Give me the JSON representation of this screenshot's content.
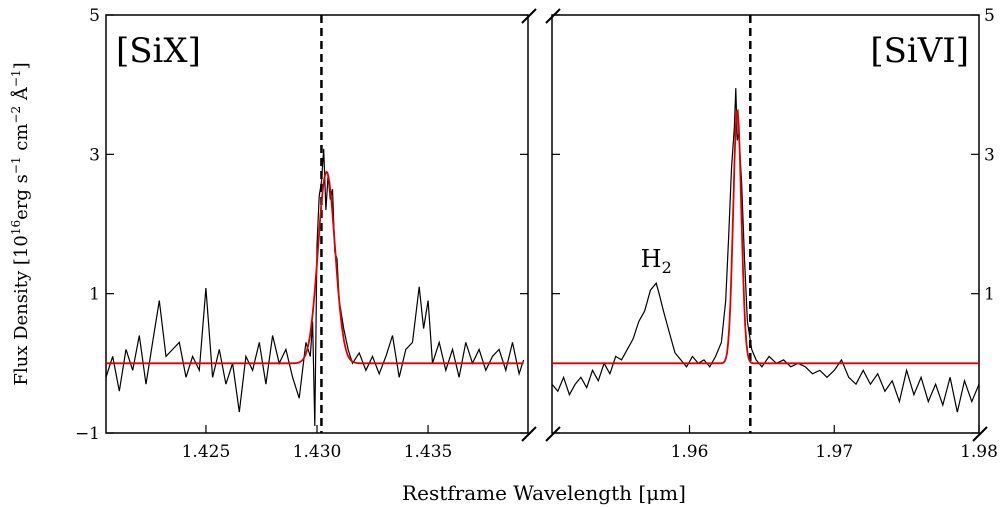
{
  "chart_data": {
    "type": "line",
    "ylabel": "Flux Density [10^16erg s^-1 cm^-2 Å^-1]",
    "ylabel_parts": {
      "base": "Flux Density [10",
      "exp1": "16",
      "mid": "erg s",
      "exp2": "−1",
      "mid2": " cm",
      "exp3": "−2",
      "mid3": " Å",
      "exp4": "−1",
      "end": "]"
    },
    "xlabel": "Restframe Wavelength [μm]",
    "ylim": [
      -1,
      5
    ],
    "yticks": [
      "−1",
      "1",
      "3",
      "5"
    ],
    "ytick_values": [
      -1,
      1,
      3,
      5
    ],
    "grid": false,
    "panels": [
      {
        "label": "[SiX]",
        "xlim": [
          1.4205,
          1.4395
        ],
        "xticks": [
          1.425,
          1.43,
          1.435
        ],
        "xtick_labels": [
          "1.425",
          "1.430",
          "1.435"
        ],
        "dashed_line_x": 1.4302,
        "fit_model": {
          "amplitude": 2.75,
          "center": 1.43043,
          "sigma": 0.00038,
          "baseline": 0.0,
          "x_range": [
            1.4205,
            1.4393
          ]
        },
        "observed": [
          [
            1.4205,
            -0.2
          ],
          [
            1.4208,
            0.1
          ],
          [
            1.4211,
            -0.4
          ],
          [
            1.4214,
            0.2
          ],
          [
            1.4217,
            -0.1
          ],
          [
            1.422,
            0.4
          ],
          [
            1.4223,
            -0.3
          ],
          [
            1.4226,
            0.3
          ],
          [
            1.4229,
            0.9
          ],
          [
            1.4232,
            0.1
          ],
          [
            1.4235,
            0.2
          ],
          [
            1.4238,
            0.3
          ],
          [
            1.4241,
            -0.2
          ],
          [
            1.4244,
            0.1
          ],
          [
            1.4247,
            -0.1
          ],
          [
            1.425,
            1.08
          ],
          [
            1.4253,
            -0.2
          ],
          [
            1.4256,
            0.2
          ],
          [
            1.4259,
            -0.3
          ],
          [
            1.4262,
            0.0
          ],
          [
            1.4265,
            -0.7
          ],
          [
            1.4268,
            0.1
          ],
          [
            1.4271,
            -0.1
          ],
          [
            1.4274,
            0.3
          ],
          [
            1.4277,
            -0.3
          ],
          [
            1.428,
            0.4
          ],
          [
            1.4283,
            0.0
          ],
          [
            1.4286,
            0.2
          ],
          [
            1.4289,
            -0.2
          ],
          [
            1.4292,
            -0.5
          ],
          [
            1.4295,
            0.3
          ],
          [
            1.4297,
            0.1
          ],
          [
            1.4298,
            0.6
          ],
          [
            1.4299,
            -0.9
          ],
          [
            1.43,
            1.7
          ],
          [
            1.4301,
            2.4
          ],
          [
            1.4302,
            2.6
          ],
          [
            1.4303,
            3.08
          ],
          [
            1.4304,
            2.2
          ],
          [
            1.4305,
            2.7
          ],
          [
            1.4306,
            2.35
          ],
          [
            1.4307,
            2.5
          ],
          [
            1.4308,
            1.6
          ],
          [
            1.4309,
            1.5
          ],
          [
            1.431,
            0.9
          ],
          [
            1.4312,
            0.5
          ],
          [
            1.4314,
            0.2
          ],
          [
            1.4316,
            0.0
          ],
          [
            1.4319,
            0.15
          ],
          [
            1.4322,
            -0.1
          ],
          [
            1.4325,
            0.1
          ],
          [
            1.4328,
            -0.15
          ],
          [
            1.4331,
            0.1
          ],
          [
            1.4334,
            0.4
          ],
          [
            1.4337,
            -0.2
          ],
          [
            1.434,
            0.2
          ],
          [
            1.4343,
            0.3
          ],
          [
            1.4346,
            1.1
          ],
          [
            1.4348,
            0.5
          ],
          [
            1.435,
            0.9
          ],
          [
            1.4352,
            0.0
          ],
          [
            1.4355,
            0.3
          ],
          [
            1.4358,
            -0.1
          ],
          [
            1.4361,
            0.2
          ],
          [
            1.4364,
            -0.2
          ],
          [
            1.4367,
            0.3
          ],
          [
            1.437,
            0.0
          ],
          [
            1.4373,
            0.2
          ],
          [
            1.4376,
            -0.1
          ],
          [
            1.4379,
            0.1
          ],
          [
            1.4382,
            0.2
          ],
          [
            1.4385,
            -0.1
          ],
          [
            1.4388,
            0.3
          ],
          [
            1.4391,
            -0.15
          ],
          [
            1.4393,
            0.05
          ]
        ]
      },
      {
        "label": "[SiVI]",
        "xlim": [
          1.9505,
          1.98
        ],
        "xticks": [
          1.96,
          1.97,
          1.98
        ],
        "xtick_labels": [
          "1.96",
          "1.97",
          "1.98"
        ],
        "dashed_line_x": 1.9642,
        "fit_model": {
          "amplitude": 3.65,
          "center": 1.9633,
          "sigma": 0.00028,
          "baseline": 0.0,
          "x_range": [
            1.9505,
            1.98
          ]
        },
        "observed": [
          [
            1.9505,
            -0.3
          ],
          [
            1.9509,
            -0.4
          ],
          [
            1.9513,
            -0.2
          ],
          [
            1.9517,
            -0.45
          ],
          [
            1.9521,
            -0.3
          ],
          [
            1.9525,
            -0.2
          ],
          [
            1.9529,
            -0.35
          ],
          [
            1.9533,
            -0.1
          ],
          [
            1.9537,
            -0.25
          ],
          [
            1.9541,
            0.0
          ],
          [
            1.9545,
            -0.15
          ],
          [
            1.9549,
            0.1
          ],
          [
            1.9553,
            0.05
          ],
          [
            1.9557,
            0.2
          ],
          [
            1.9561,
            0.35
          ],
          [
            1.9565,
            0.6
          ],
          [
            1.9569,
            0.75
          ],
          [
            1.9573,
            1.05
          ],
          [
            1.9577,
            1.15
          ],
          [
            1.9579,
            1.0
          ],
          [
            1.9582,
            0.75
          ],
          [
            1.9586,
            0.45
          ],
          [
            1.959,
            0.15
          ],
          [
            1.9594,
            0.05
          ],
          [
            1.9598,
            -0.05
          ],
          [
            1.9602,
            0.1
          ],
          [
            1.9606,
            0.0
          ],
          [
            1.961,
            0.05
          ],
          [
            1.9614,
            -0.05
          ],
          [
            1.9618,
            0.1
          ],
          [
            1.9622,
            0.3
          ],
          [
            1.9625,
            0.9
          ],
          [
            1.9627,
            1.8
          ],
          [
            1.9629,
            2.8
          ],
          [
            1.9631,
            3.4
          ],
          [
            1.9632,
            3.95
          ],
          [
            1.9633,
            3.2
          ],
          [
            1.9634,
            3.3
          ],
          [
            1.9636,
            2.6
          ],
          [
            1.9638,
            1.5
          ],
          [
            1.964,
            0.6
          ],
          [
            1.9643,
            0.2
          ],
          [
            1.9646,
            0.05
          ],
          [
            1.965,
            -0.05
          ],
          [
            1.9655,
            0.1
          ],
          [
            1.966,
            0.0
          ],
          [
            1.9665,
            0.05
          ],
          [
            1.967,
            -0.05
          ],
          [
            1.9675,
            0.0
          ],
          [
            1.968,
            -0.05
          ],
          [
            1.9685,
            -0.15
          ],
          [
            1.969,
            -0.1
          ],
          [
            1.9695,
            -0.2
          ],
          [
            1.97,
            -0.1
          ],
          [
            1.9705,
            0.05
          ],
          [
            1.971,
            -0.2
          ],
          [
            1.9715,
            -0.3
          ],
          [
            1.972,
            -0.1
          ],
          [
            1.9725,
            -0.3
          ],
          [
            1.973,
            -0.15
          ],
          [
            1.9735,
            -0.4
          ],
          [
            1.974,
            -0.25
          ],
          [
            1.9745,
            -0.55
          ],
          [
            1.975,
            -0.1
          ],
          [
            1.9755,
            -0.45
          ],
          [
            1.976,
            -0.2
          ],
          [
            1.9765,
            -0.55
          ],
          [
            1.977,
            -0.3
          ],
          [
            1.9775,
            -0.6
          ],
          [
            1.978,
            -0.2
          ],
          [
            1.9785,
            -0.7
          ],
          [
            1.979,
            -0.25
          ],
          [
            1.9795,
            -0.55
          ],
          [
            1.98,
            -0.3
          ]
        ]
      }
    ],
    "annotations": [
      {
        "text": "H",
        "subscript": "2",
        "panel": 1,
        "x": 1.9577,
        "y": 1.5
      }
    ],
    "colors": {
      "observed": "#000000",
      "fit": "#dd0000",
      "reference_line": "#000000"
    }
  }
}
